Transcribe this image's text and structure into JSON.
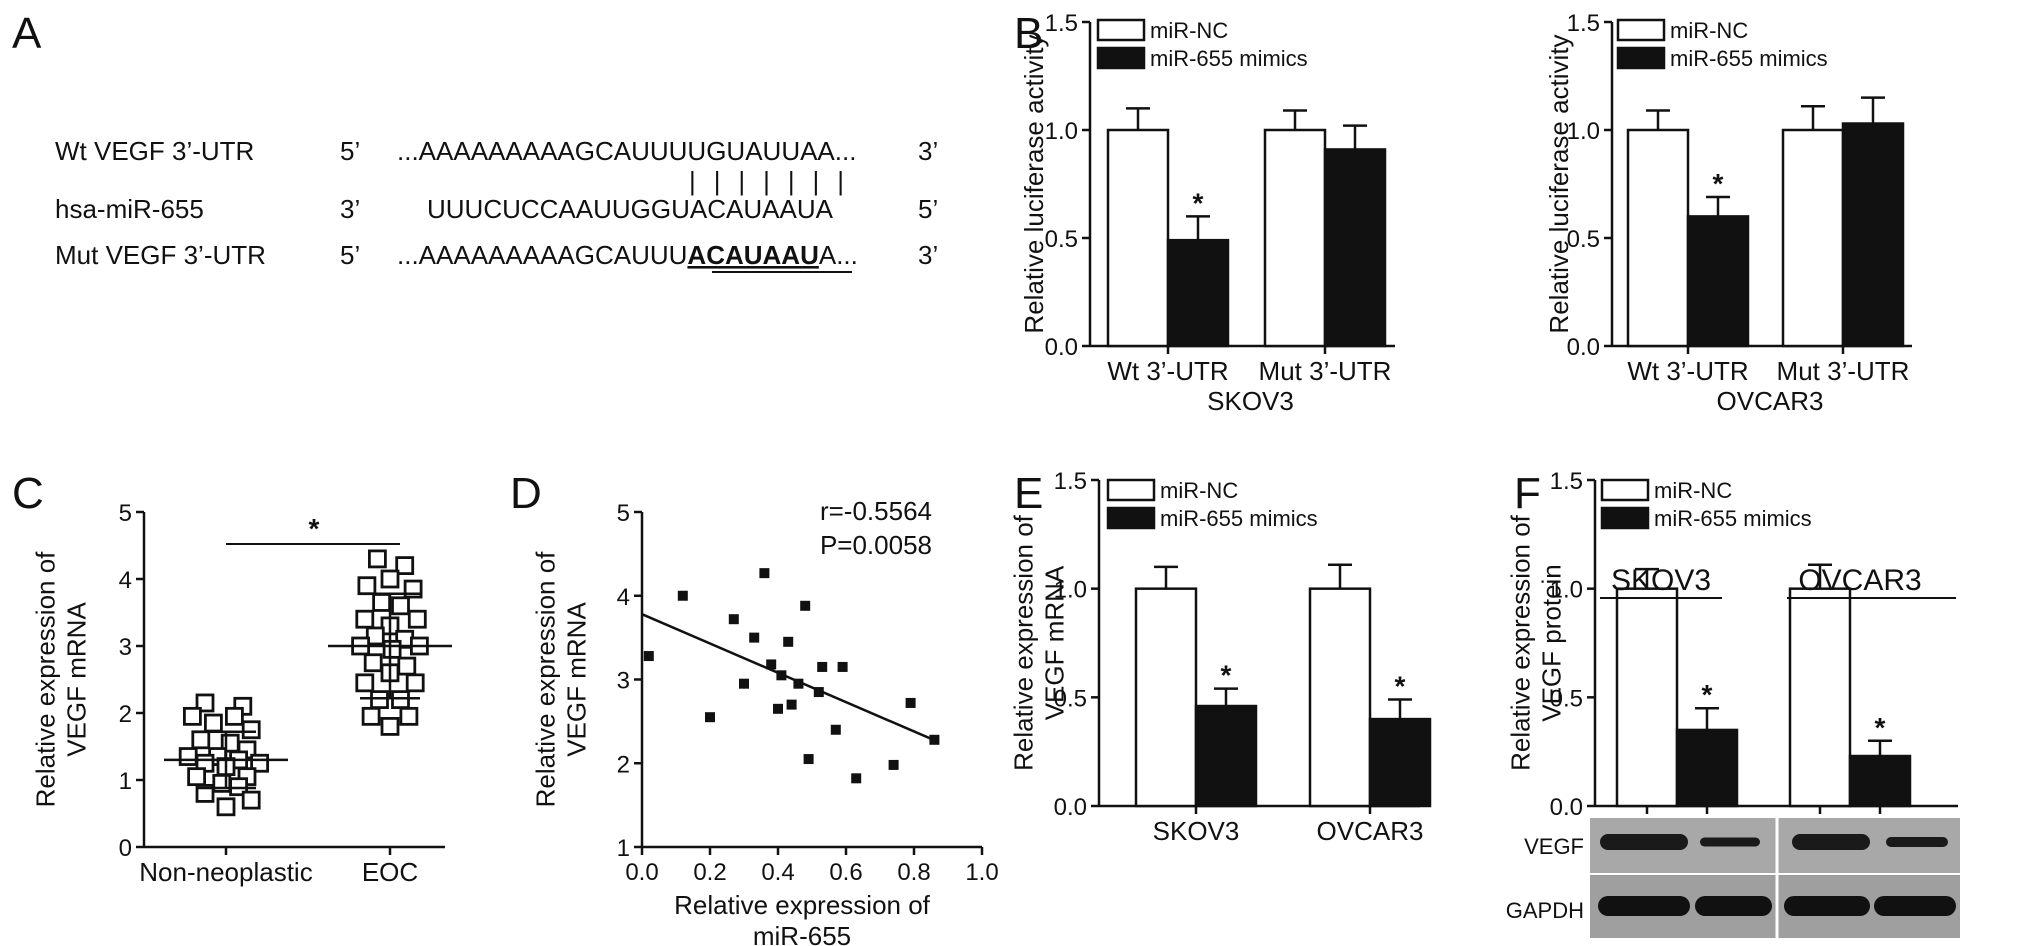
{
  "panels": {
    "A": {
      "letter": "A",
      "rows": [
        {
          "label": "Wt VEGF 3’-UTR",
          "left_end": "5’",
          "seq_pre": "...AAAAAAAAAGCAUUUUGUAUUAA...",
          "seq_bold": "",
          "seq_post": "",
          "right_end": "3’"
        },
        {
          "label": "hsa-miR-655",
          "left_end": "3’",
          "seq_pre": "UUUCUCCAAUUGGUACAUAAUA",
          "seq_bold": "",
          "seq_post": "",
          "right_end": "5’"
        },
        {
          "label": "Mut VEGF 3’-UTR",
          "left_end": "5’",
          "seq_pre": "...AAAAAAAAAGCAUUU",
          "seq_bold": "ACAUAAU",
          "seq_post": "A...",
          "right_end": "3’"
        }
      ],
      "pairing_marks": "|||||||"
    },
    "B": {
      "letter": "B"
    },
    "C": {
      "letter": "C"
    },
    "D": {
      "letter": "D"
    },
    "E": {
      "letter": "E"
    },
    "F": {
      "letter": "F"
    }
  },
  "chart_data": [
    {
      "id": "B-left",
      "type": "bar",
      "ylabel": "Relative luciferase activity",
      "ylim": [
        0,
        1.5
      ],
      "yticks": [
        "0.0",
        "0.5",
        "1.0",
        "1.5"
      ],
      "categories": [
        "Wt 3’-UTR",
        "Mut 3’-UTR"
      ],
      "group_label": "SKOV3",
      "legend": "top-left",
      "series": [
        {
          "name": "miR-NC",
          "color": "#ffffff",
          "values": [
            1.0,
            1.0
          ],
          "errors": [
            0.1,
            0.09
          ]
        },
        {
          "name": "miR-655 mimics",
          "color": "#111111",
          "values": [
            0.49,
            0.91
          ],
          "errors": [
            0.11,
            0.11
          ]
        }
      ],
      "significance": [
        "",
        "*",
        "",
        ""
      ]
    },
    {
      "id": "B-right",
      "type": "bar",
      "ylabel": "Relative luciferase activity",
      "ylim": [
        0,
        1.5
      ],
      "yticks": [
        "0.0",
        "0.5",
        "1.0",
        "1.5"
      ],
      "categories": [
        "Wt 3’-UTR",
        "Mut 3’-UTR"
      ],
      "group_label": "OVCAR3",
      "legend": "top-left",
      "series": [
        {
          "name": "miR-NC",
          "color": "#ffffff",
          "values": [
            1.0,
            1.0
          ],
          "errors": [
            0.09,
            0.11
          ]
        },
        {
          "name": "miR-655 mimics",
          "color": "#111111",
          "values": [
            0.6,
            1.03
          ],
          "errors": [
            0.09,
            0.12
          ]
        }
      ],
      "significance": [
        "",
        "*",
        "",
        ""
      ]
    },
    {
      "id": "C",
      "type": "scatter",
      "ylabel_lines": [
        "Relative expression of",
        "VEGF mRNA"
      ],
      "ylim": [
        0,
        5
      ],
      "yticks": [
        "0",
        "1",
        "2",
        "3",
        "4",
        "5"
      ],
      "categories": [
        "Non-neoplastic",
        "EOC"
      ],
      "groups": [
        {
          "name": "Non-neoplastic",
          "mean": 1.3,
          "sd": 0.42,
          "points": [
            [
              -0.5,
              2.15
            ],
            [
              0.4,
              2.1
            ],
            [
              -0.8,
              1.95
            ],
            [
              0.2,
              1.95
            ],
            [
              -0.3,
              1.85
            ],
            [
              0.6,
              1.75
            ],
            [
              -0.6,
              1.6
            ],
            [
              0.1,
              1.55
            ],
            [
              0.5,
              1.45
            ],
            [
              -0.9,
              1.35
            ],
            [
              -0.2,
              1.35
            ],
            [
              0.3,
              1.3
            ],
            [
              -0.5,
              1.25
            ],
            [
              0.8,
              1.25
            ],
            [
              0.0,
              1.2
            ],
            [
              -0.7,
              1.05
            ],
            [
              0.5,
              1.05
            ],
            [
              -0.1,
              0.95
            ],
            [
              0.3,
              0.9
            ],
            [
              -0.5,
              0.8
            ],
            [
              0.6,
              0.7
            ],
            [
              0.0,
              0.6
            ]
          ]
        },
        {
          "name": "EOC",
          "mean": 3.0,
          "sd": 0.78,
          "points": [
            [
              -0.3,
              4.3
            ],
            [
              0.35,
              4.2
            ],
            [
              0.0,
              4.0
            ],
            [
              -0.55,
              3.9
            ],
            [
              0.55,
              3.85
            ],
            [
              -0.2,
              3.65
            ],
            [
              0.25,
              3.6
            ],
            [
              -0.6,
              3.4
            ],
            [
              0.65,
              3.4
            ],
            [
              0.0,
              3.3
            ],
            [
              -0.35,
              3.15
            ],
            [
              0.35,
              3.1
            ],
            [
              -0.7,
              3.0
            ],
            [
              0.7,
              3.0
            ],
            [
              0.05,
              2.95
            ],
            [
              -0.4,
              2.75
            ],
            [
              0.4,
              2.7
            ],
            [
              0.0,
              2.6
            ],
            [
              -0.6,
              2.45
            ],
            [
              0.6,
              2.45
            ],
            [
              -0.25,
              2.2
            ],
            [
              0.25,
              2.2
            ],
            [
              -0.45,
              1.95
            ],
            [
              0.45,
              1.95
            ],
            [
              0.0,
              1.8
            ]
          ]
        }
      ],
      "significance": "*"
    },
    {
      "id": "D",
      "type": "scatter",
      "xlabel_lines": [
        "Relative expression of",
        "miR-655"
      ],
      "ylabel_lines": [
        "Relative expression of",
        "VEGF mRNA"
      ],
      "xlim": [
        0,
        1.0
      ],
      "ylim": [
        1,
        5
      ],
      "xticks": [
        "0.0",
        "0.2",
        "0.4",
        "0.6",
        "0.8",
        "1.0"
      ],
      "yticks": [
        "1",
        "2",
        "3",
        "4",
        "5"
      ],
      "stats": [
        "r=-0.5564",
        "P=0.0058"
      ],
      "fit_line": {
        "intercept": 3.78,
        "slope": -1.75
      },
      "points": [
        [
          0.02,
          3.28
        ],
        [
          0.12,
          4.0
        ],
        [
          0.2,
          2.55
        ],
        [
          0.27,
          3.72
        ],
        [
          0.3,
          2.95
        ],
        [
          0.33,
          3.5
        ],
        [
          0.36,
          4.27
        ],
        [
          0.38,
          3.18
        ],
        [
          0.4,
          2.65
        ],
        [
          0.41,
          3.05
        ],
        [
          0.43,
          3.45
        ],
        [
          0.44,
          2.7
        ],
        [
          0.46,
          2.95
        ],
        [
          0.48,
          3.88
        ],
        [
          0.49,
          2.05
        ],
        [
          0.52,
          2.85
        ],
        [
          0.53,
          3.15
        ],
        [
          0.57,
          2.4
        ],
        [
          0.59,
          3.15
        ],
        [
          0.63,
          1.82
        ],
        [
          0.74,
          1.98
        ],
        [
          0.79,
          2.72
        ],
        [
          0.86,
          2.28
        ]
      ]
    },
    {
      "id": "E",
      "type": "bar",
      "ylabel_lines": [
        "Relative expression of",
        "VEGF mRNA"
      ],
      "ylim": [
        0,
        1.5
      ],
      "yticks": [
        "0.0",
        "0.5",
        "1.0",
        "1.5"
      ],
      "categories": [
        "SKOV3",
        "OVCAR3"
      ],
      "legend": "top-left",
      "series": [
        {
          "name": "miR-NC",
          "color": "#ffffff",
          "values": [
            1.0,
            1.0
          ],
          "errors": [
            0.1,
            0.11
          ]
        },
        {
          "name": "miR-655 mimics",
          "color": "#111111",
          "values": [
            0.46,
            0.4
          ],
          "errors": [
            0.08,
            0.09
          ]
        }
      ],
      "significance": [
        "",
        "*",
        "",
        "*"
      ]
    },
    {
      "id": "F",
      "type": "bar",
      "ylabel_lines": [
        "Relative expression of",
        "VEGF protein"
      ],
      "ylim": [
        0,
        1.5
      ],
      "yticks": [
        "0.0",
        "0.5",
        "1.0",
        "1.5"
      ],
      "categories": [
        "SKOV3",
        "OVCAR3"
      ],
      "legend": "top-left",
      "series": [
        {
          "name": "miR-NC",
          "color": "#ffffff",
          "values": [
            1.0,
            1.0
          ],
          "errors": [
            0.09,
            0.11
          ]
        },
        {
          "name": "miR-655 mimics",
          "color": "#111111",
          "values": [
            0.35,
            0.23
          ],
          "errors": [
            0.1,
            0.07
          ]
        }
      ],
      "significance": [
        "",
        "*",
        "",
        "*"
      ],
      "blot_labels": [
        "VEGF",
        "GAPDH"
      ]
    }
  ]
}
